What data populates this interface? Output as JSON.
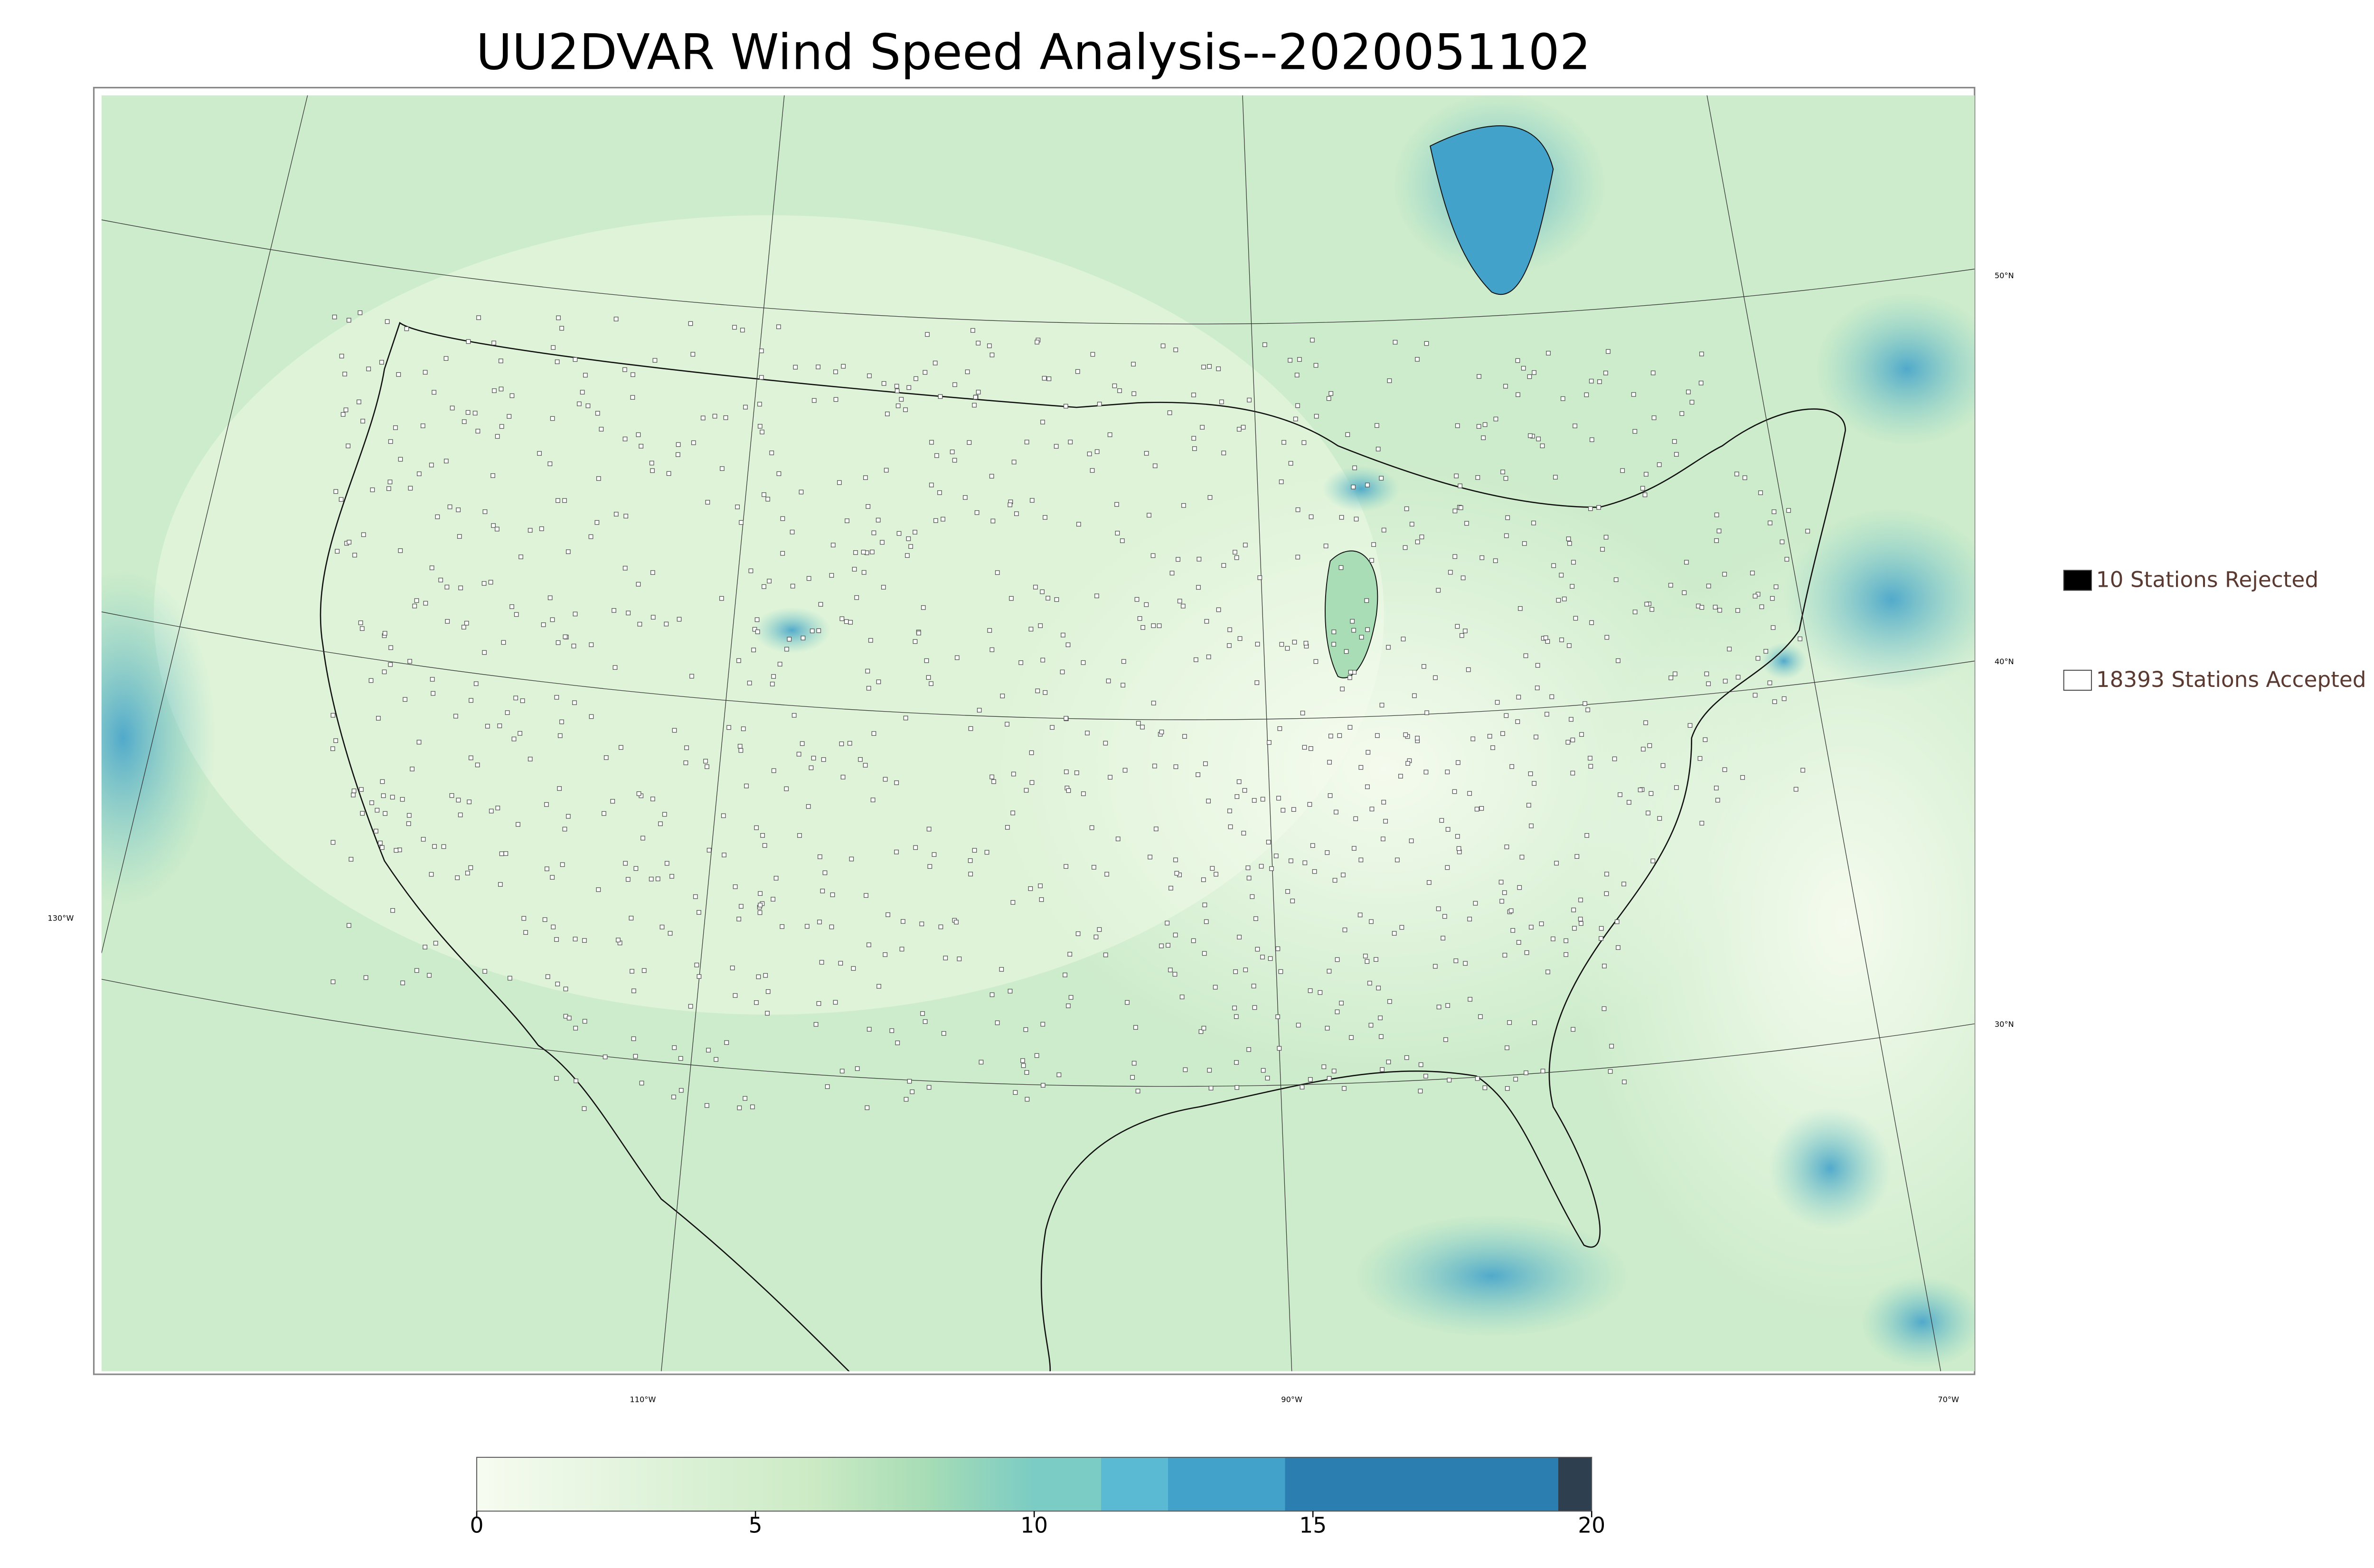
{
  "title": "UU2DVAR Wind Speed Analysis--2020051102",
  "legend": [
    {
      "label": "10 Stations Rejected",
      "color": "#000000"
    },
    {
      "label": "18393 Stations Accepted",
      "color": "#ffffff"
    }
  ],
  "latitude_labels": [
    "50°N",
    "40°N",
    "30°N"
  ],
  "longitude_labels": [
    "130°W",
    "110°W",
    "90°W",
    "70°W"
  ],
  "colorbar": {
    "lim": [
      0,
      20
    ],
    "ticks": [
      0,
      5,
      10,
      15,
      20
    ]
  }
}
